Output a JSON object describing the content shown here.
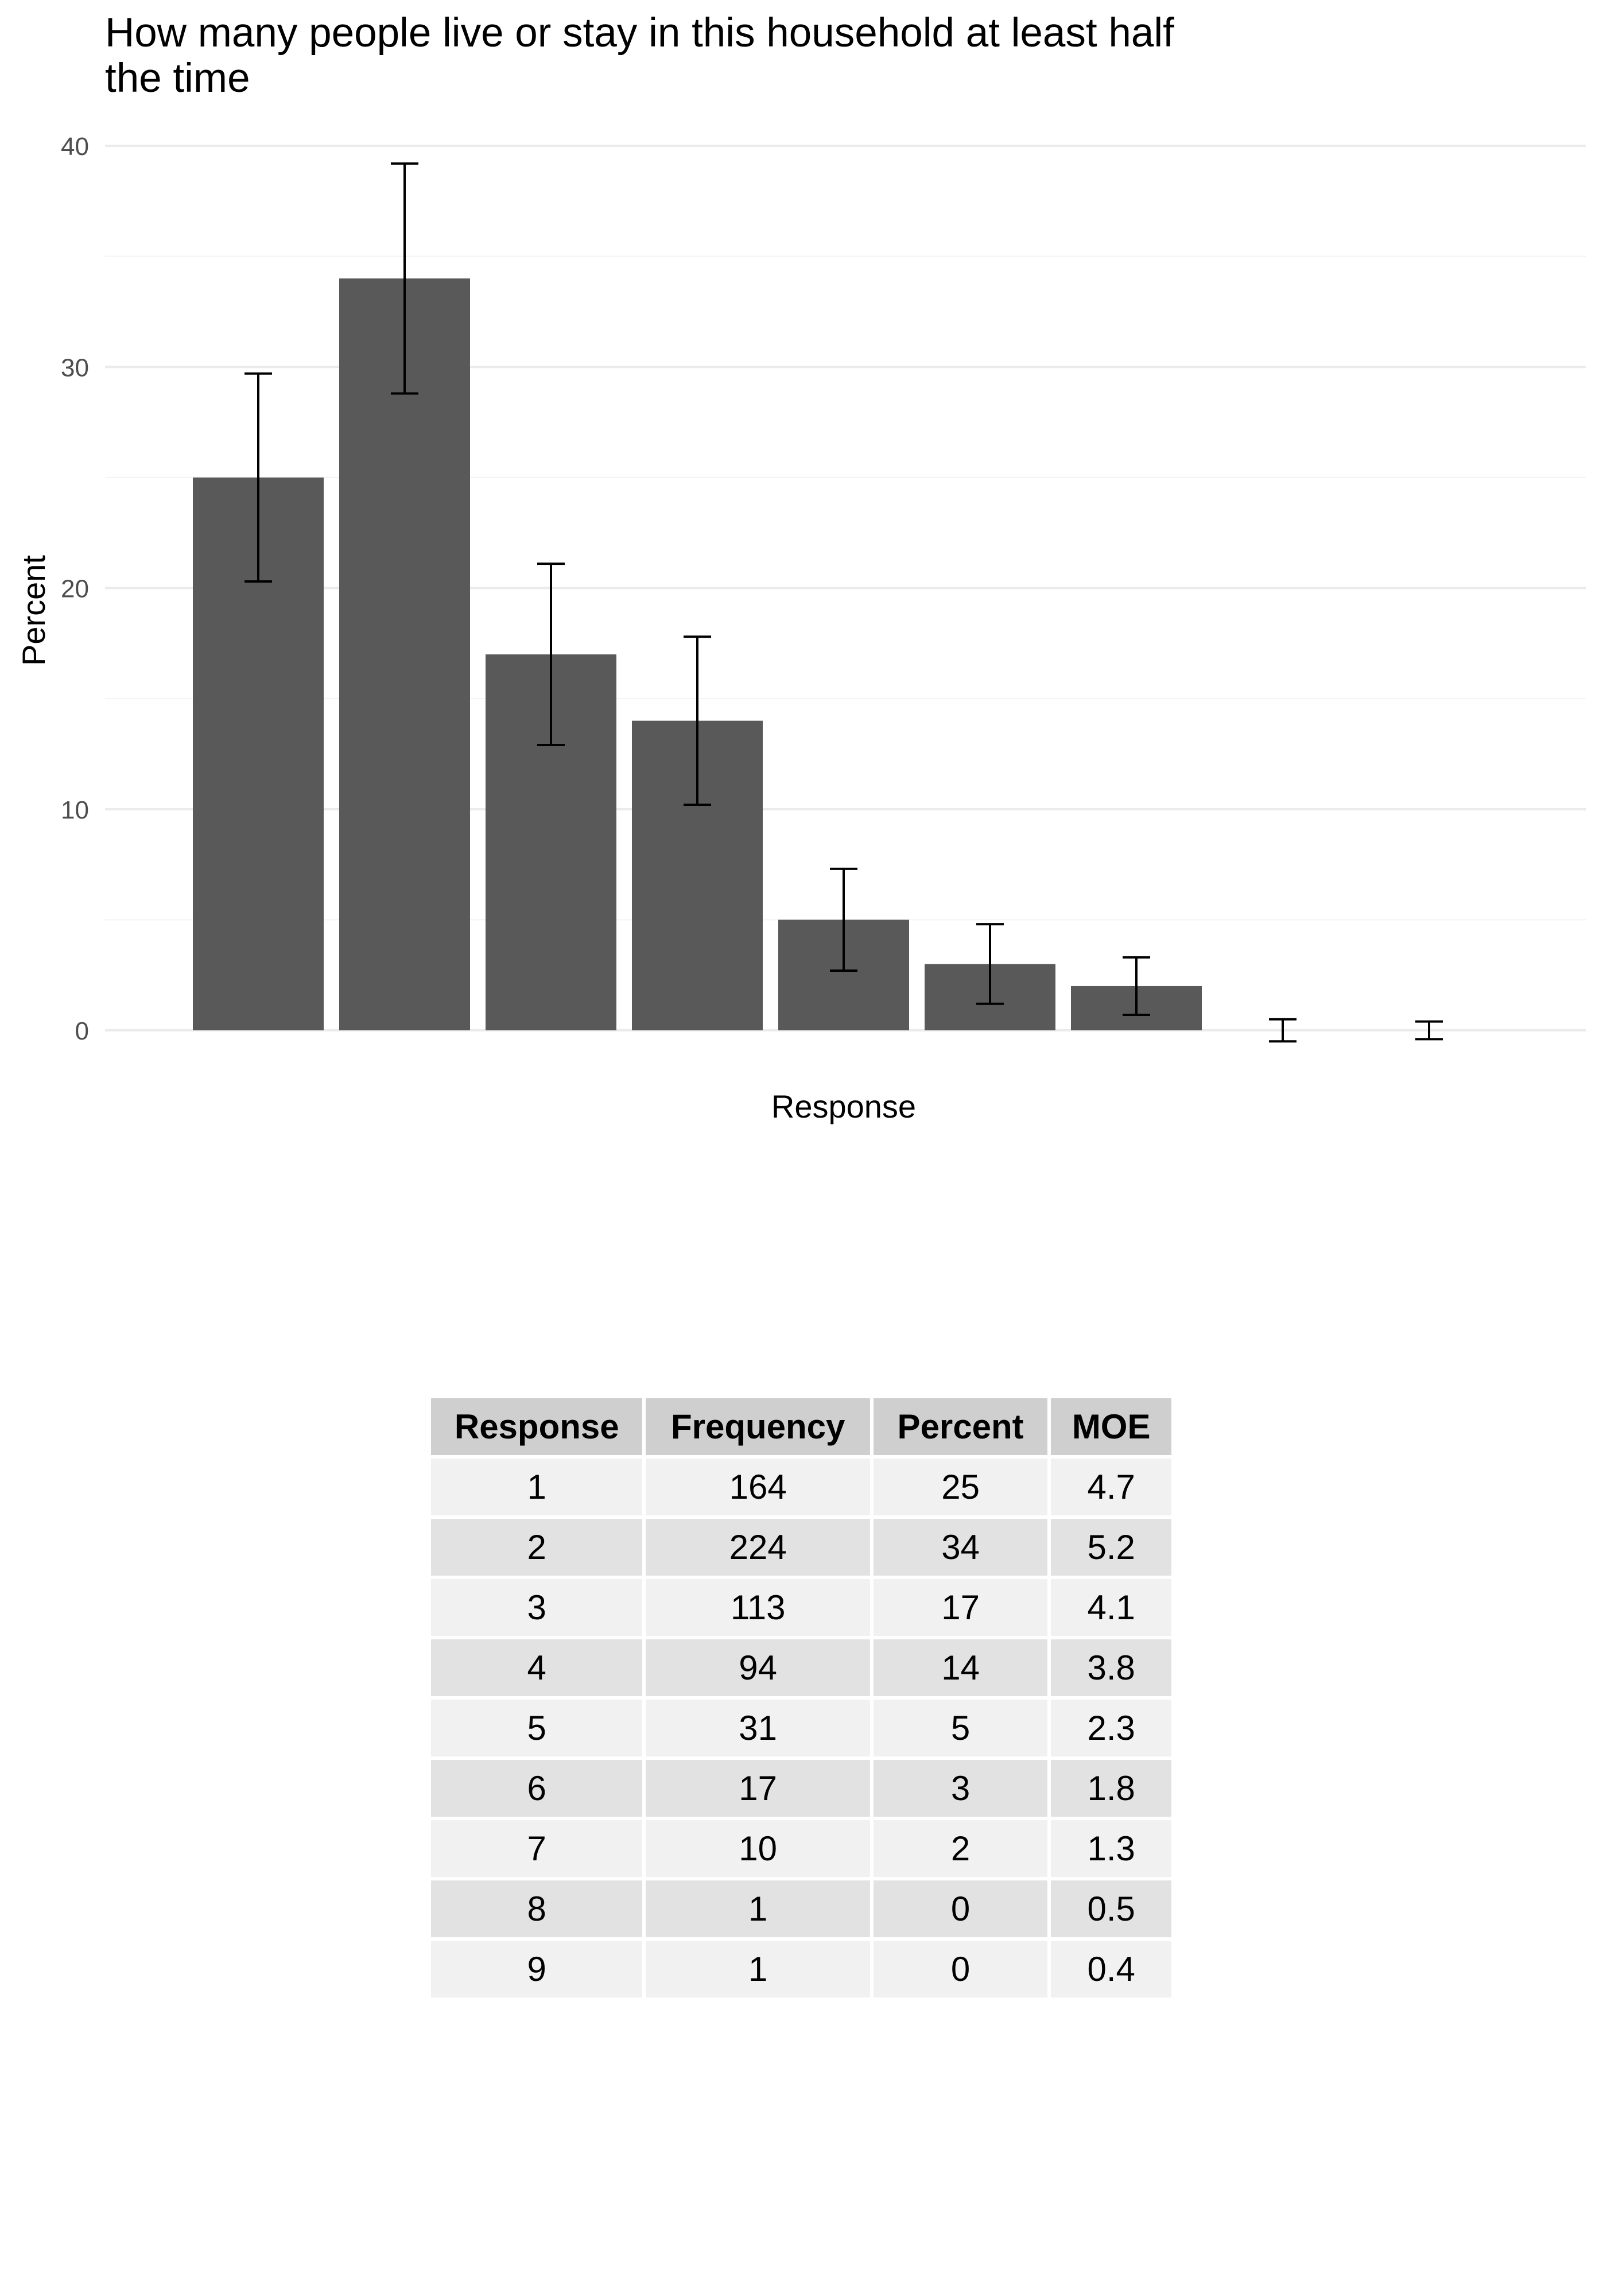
{
  "chart_data": {
    "type": "bar",
    "title": "How many people live or stay in this household at least half the time",
    "xlabel": "Response",
    "ylabel": "Percent",
    "categories": [
      "1",
      "2",
      "3",
      "4",
      "5",
      "6",
      "7",
      "8",
      "9"
    ],
    "values": [
      25,
      34,
      17,
      14,
      5,
      3,
      2,
      0,
      0
    ],
    "error_moe": [
      4.7,
      5.2,
      4.1,
      3.8,
      2.3,
      1.8,
      1.3,
      0.5,
      0.4
    ],
    "ylim": [
      0,
      40
    ],
    "yticks": [
      0,
      10,
      20,
      30,
      40
    ],
    "x_tick_labels_shown": false,
    "grid": true,
    "bar_color": "#595959",
    "grid_color": "#ebebeb",
    "legend": "none"
  },
  "table": {
    "headers": [
      "Response",
      "Frequency",
      "Percent",
      "MOE"
    ],
    "rows": [
      [
        "1",
        "164",
        "25",
        "4.7"
      ],
      [
        "2",
        "224",
        "34",
        "5.2"
      ],
      [
        "3",
        "113",
        "17",
        "4.1"
      ],
      [
        "4",
        "94",
        "14",
        "3.8"
      ],
      [
        "5",
        "31",
        "5",
        "2.3"
      ],
      [
        "6",
        "17",
        "3",
        "1.8"
      ],
      [
        "7",
        "10",
        "2",
        "1.3"
      ],
      [
        "8",
        "1",
        "0",
        "0.5"
      ],
      [
        "9",
        "1",
        "0",
        "0.4"
      ]
    ],
    "header_bg": "#cfcfcf",
    "row_bg_odd": "#f1f1f1",
    "row_bg_even": "#e2e2e2"
  }
}
